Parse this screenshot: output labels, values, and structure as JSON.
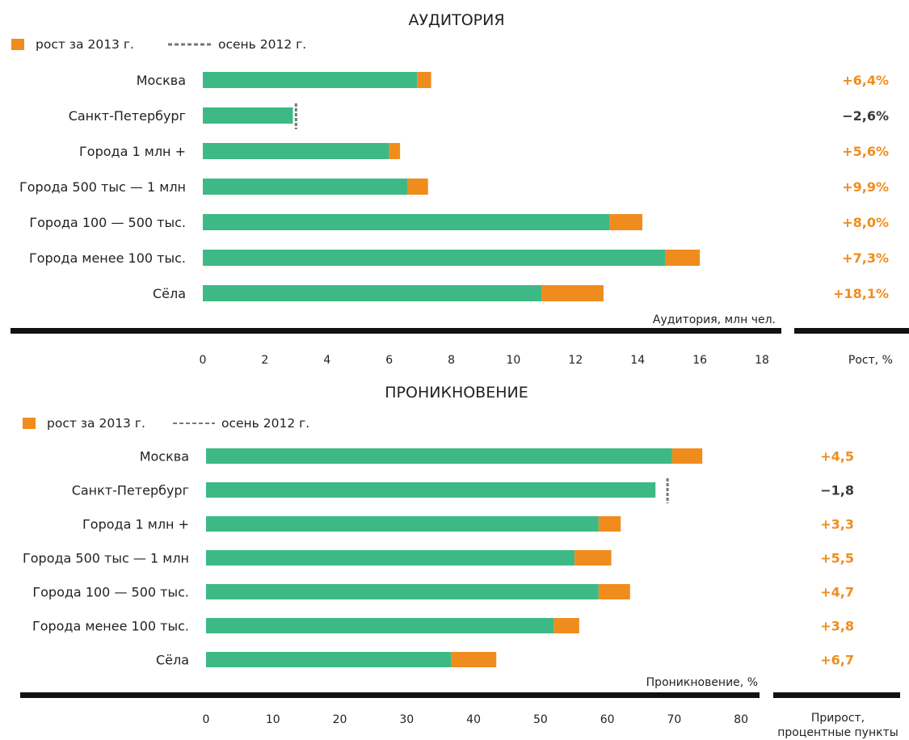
{
  "colors": {
    "base": "#3db985",
    "growth": "#f08c1e",
    "positive_text": "#f08c1e",
    "negative_text": "#3a3a3a",
    "dashed": "#6e7b78",
    "axis_bar": "#111111"
  },
  "legend": {
    "growth_label": "рост за 2013 г.",
    "autumn_label": "осень 2012 г."
  },
  "chart_data": [
    {
      "type": "bar",
      "orientation": "horizontal",
      "stacked": true,
      "title": "АУДИТОРИЯ",
      "xlabel": "Аудитория, млн чел.",
      "growth_column_title": "Рост, %",
      "xlim": [
        0,
        18
      ],
      "xticks": [
        0,
        2,
        4,
        6,
        8,
        10,
        12,
        14,
        16,
        18
      ],
      "legend_position": "top-left",
      "categories": [
        "Москва",
        "Санкт-Петербург",
        "Города 1 млн +",
        "Города 500 тыс — 1 млн",
        "Города 100 — 500 тыс.",
        "Города менее 100 тыс.",
        "Сёла"
      ],
      "series": [
        {
          "name": "осень 2012 г.",
          "values": [
            6.9,
            3.0,
            6.0,
            6.6,
            13.1,
            14.9,
            10.9
          ]
        },
        {
          "name": "рост за 2013 г.",
          "values": [
            0.45,
            -0.1,
            0.35,
            0.65,
            1.05,
            1.1,
            2.0
          ]
        }
      ],
      "growth_labels": [
        "+6,4%",
        "−2,6%",
        "+5,6%",
        "+9,9%",
        "+8,0%",
        "+7,3%",
        "+18,1%"
      ]
    },
    {
      "type": "bar",
      "orientation": "horizontal",
      "stacked": true,
      "title": "ПРОНИКНОВЕНИЕ",
      "xlabel": "Проникновение, %",
      "growth_column_title": "Прирост, процентные пункты",
      "xlim": [
        0,
        83
      ],
      "xticks": [
        0,
        10,
        20,
        30,
        40,
        50,
        60,
        70,
        80
      ],
      "legend_position": "top-left",
      "categories": [
        "Москва",
        "Санкт-Петербург",
        "Города 1 млн +",
        "Города 500 тыс — 1 млн",
        "Города 100 — 500 тыс.",
        "Города менее 100 тыс.",
        "Сёла"
      ],
      "series": [
        {
          "name": "осень 2012 г.",
          "values": [
            69.7,
            69.0,
            58.7,
            55.1,
            58.7,
            52.0,
            36.7
          ]
        },
        {
          "name": "рост за 2013 г.",
          "values": [
            4.5,
            -1.8,
            3.3,
            5.5,
            4.7,
            3.8,
            6.7
          ]
        }
      ],
      "growth_labels": [
        "+4,5",
        "−1,8",
        "+3,3",
        "+5,5",
        "+4,7",
        "+3,8",
        "+6,7"
      ]
    }
  ]
}
